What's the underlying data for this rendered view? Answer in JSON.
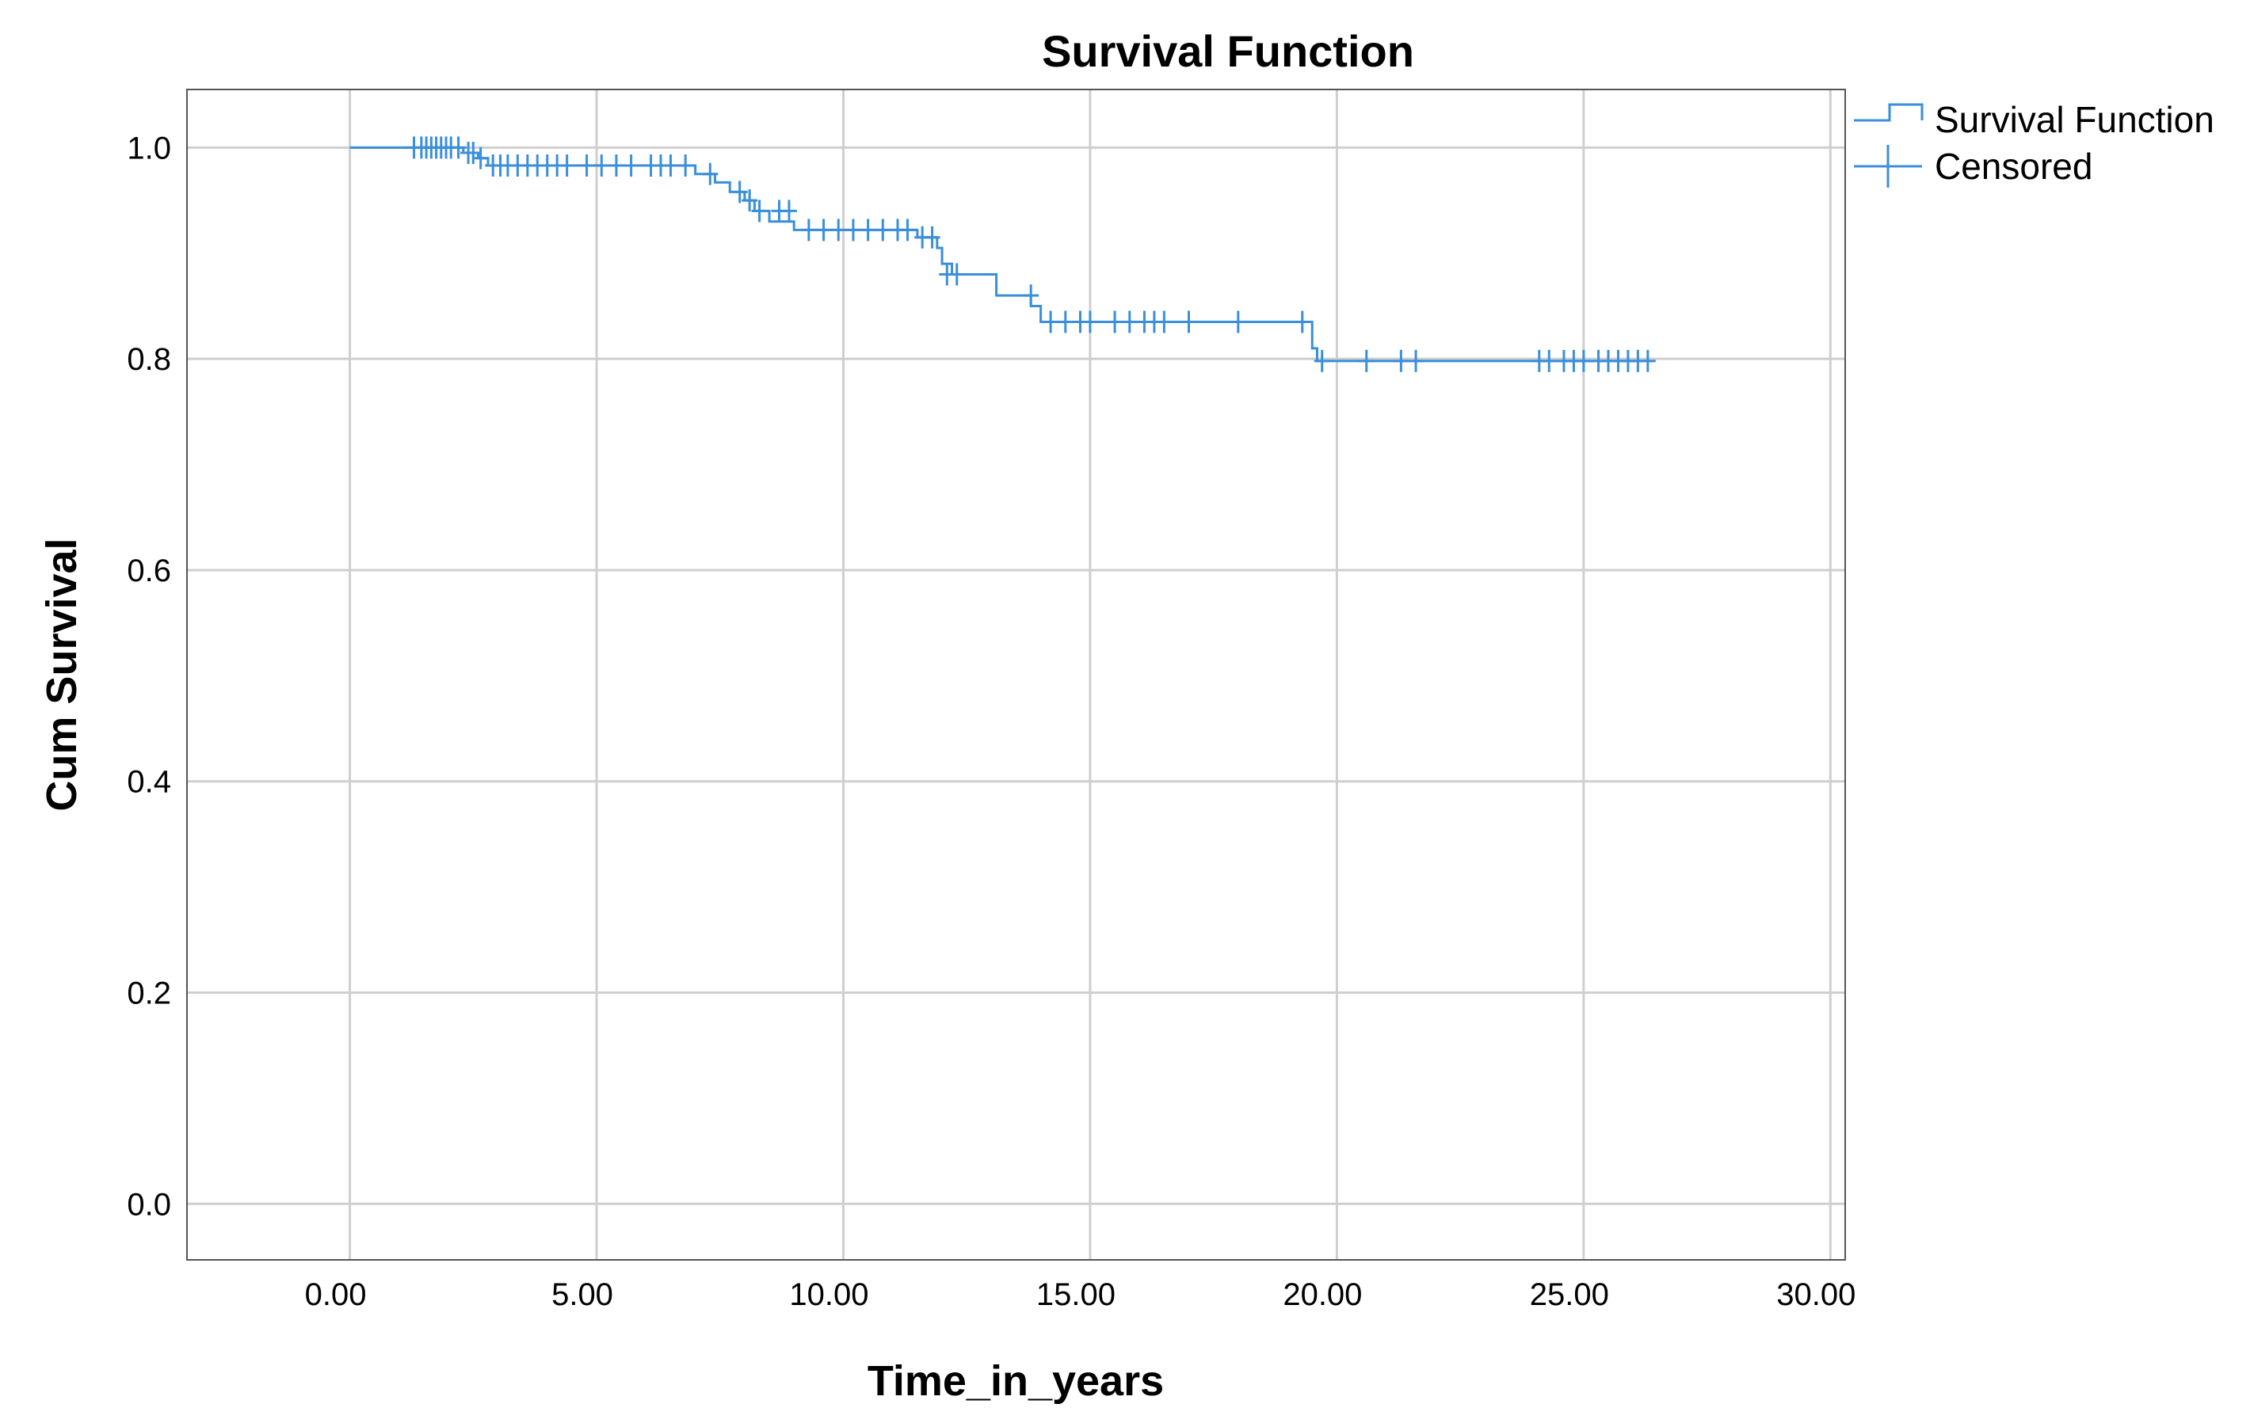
{
  "chart_data": {
    "type": "line",
    "title": "Survival Function",
    "xlabel": "Time_in_years",
    "ylabel": "Cum Survival",
    "xlim": [
      -3.3,
      30.3
    ],
    "ylim": [
      -0.053,
      1.055
    ],
    "x_ticks": [
      0,
      5,
      10,
      15,
      20,
      25,
      30
    ],
    "x_tick_labels": [
      "0.00",
      "5.00",
      "10.00",
      "15.00",
      "20.00",
      "25.00",
      "30.00"
    ],
    "y_ticks": [
      0.0,
      0.2,
      0.4,
      0.6,
      0.8,
      1.0
    ],
    "y_tick_labels": [
      "0.0",
      "0.2",
      "0.4",
      "0.6",
      "0.8",
      "1.0"
    ],
    "grid": true,
    "legend_position": "top-right",
    "colors": {
      "series": "#3a8fd9",
      "grid": "#cfcfcf",
      "axis": "#555555"
    },
    "series": [
      {
        "name": "Survival Function",
        "kind": "step",
        "x": [
          0,
          2.3,
          2.6,
          2.8,
          7.0,
          7.4,
          7.7,
          8.0,
          8.2,
          8.5,
          9.0,
          11.5,
          11.9,
          12.0,
          12.2,
          13.1,
          13.8,
          14.0,
          19.5,
          19.6,
          26.4
        ],
        "y": [
          1.0,
          0.995,
          0.99,
          0.983,
          0.975,
          0.967,
          0.958,
          0.95,
          0.94,
          0.93,
          0.922,
          0.915,
          0.905,
          0.89,
          0.88,
          0.86,
          0.85,
          0.835,
          0.81,
          0.798,
          0.798
        ]
      },
      {
        "name": "Censored",
        "kind": "marker",
        "points": [
          [
            1.3,
            1.0
          ],
          [
            1.45,
            1.0
          ],
          [
            1.55,
            1.0
          ],
          [
            1.65,
            1.0
          ],
          [
            1.75,
            1.0
          ],
          [
            1.85,
            1.0
          ],
          [
            1.95,
            1.0
          ],
          [
            2.05,
            1.0
          ],
          [
            2.2,
            1.0
          ],
          [
            2.4,
            0.995
          ],
          [
            2.5,
            0.995
          ],
          [
            2.65,
            0.99
          ],
          [
            2.9,
            0.983
          ],
          [
            3.05,
            0.983
          ],
          [
            3.2,
            0.983
          ],
          [
            3.4,
            0.983
          ],
          [
            3.6,
            0.983
          ],
          [
            3.8,
            0.983
          ],
          [
            4.0,
            0.983
          ],
          [
            4.2,
            0.983
          ],
          [
            4.4,
            0.983
          ],
          [
            4.8,
            0.983
          ],
          [
            5.1,
            0.983
          ],
          [
            5.4,
            0.983
          ],
          [
            5.7,
            0.983
          ],
          [
            6.1,
            0.983
          ],
          [
            6.3,
            0.983
          ],
          [
            6.5,
            0.983
          ],
          [
            6.8,
            0.983
          ],
          [
            7.3,
            0.975
          ],
          [
            7.9,
            0.958
          ],
          [
            8.1,
            0.95
          ],
          [
            8.3,
            0.94
          ],
          [
            8.7,
            0.94
          ],
          [
            8.9,
            0.94
          ],
          [
            9.3,
            0.922
          ],
          [
            9.6,
            0.922
          ],
          [
            9.9,
            0.922
          ],
          [
            10.2,
            0.922
          ],
          [
            10.5,
            0.922
          ],
          [
            10.8,
            0.922
          ],
          [
            11.1,
            0.922
          ],
          [
            11.3,
            0.922
          ],
          [
            11.6,
            0.915
          ],
          [
            11.8,
            0.915
          ],
          [
            12.1,
            0.88
          ],
          [
            12.3,
            0.88
          ],
          [
            13.8,
            0.86
          ],
          [
            14.2,
            0.835
          ],
          [
            14.5,
            0.835
          ],
          [
            14.8,
            0.835
          ],
          [
            15.0,
            0.835
          ],
          [
            15.5,
            0.835
          ],
          [
            15.8,
            0.835
          ],
          [
            16.1,
            0.835
          ],
          [
            16.3,
            0.835
          ],
          [
            16.5,
            0.835
          ],
          [
            17.0,
            0.835
          ],
          [
            18.0,
            0.835
          ],
          [
            19.3,
            0.835
          ],
          [
            19.7,
            0.798
          ],
          [
            20.6,
            0.798
          ],
          [
            21.3,
            0.798
          ],
          [
            21.6,
            0.798
          ],
          [
            24.1,
            0.798
          ],
          [
            24.3,
            0.798
          ],
          [
            24.6,
            0.798
          ],
          [
            24.8,
            0.798
          ],
          [
            25.0,
            0.798
          ],
          [
            25.3,
            0.798
          ],
          [
            25.5,
            0.798
          ],
          [
            25.7,
            0.798
          ],
          [
            25.9,
            0.798
          ],
          [
            26.1,
            0.798
          ],
          [
            26.3,
            0.798
          ]
        ]
      }
    ]
  }
}
